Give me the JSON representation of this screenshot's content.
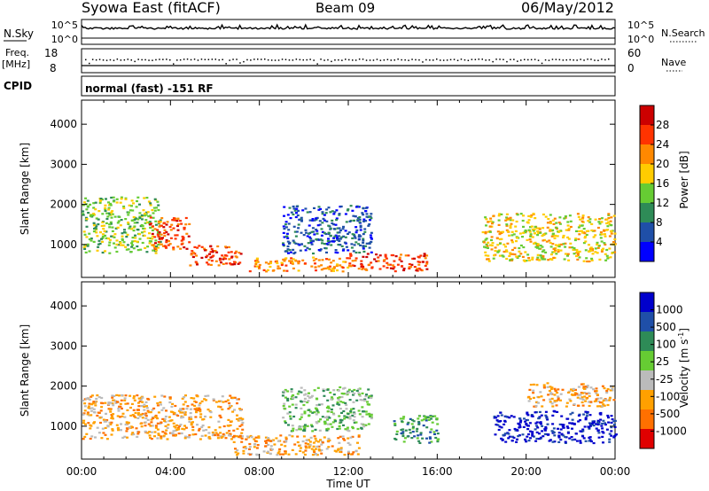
{
  "header": {
    "station": "Syowa East (fitACF)",
    "beam": "Beam 09",
    "date": "06/May/2012"
  },
  "noise_panel": {
    "left_label": "N.Sky",
    "right_label": "N.Search",
    "ticks": [
      "10^5",
      "10^0"
    ]
  },
  "freq_panel": {
    "left_label_1": "Freq.",
    "left_label_2": "[MHz]",
    "right_label": "Nave",
    "left_ticks": [
      "18",
      "8"
    ],
    "right_ticks": [
      "60",
      "0"
    ]
  },
  "cpid": {
    "label": "CPID",
    "mode": "normal (fast) -151 RF"
  },
  "x_axis": {
    "label": "Time UT",
    "ticks": [
      "00:00",
      "04:00",
      "08:00",
      "12:00",
      "16:00",
      "20:00",
      "00:00"
    ]
  },
  "colors": {
    "power": [
      "#0000ff",
      "#1f4fa8",
      "#2e8b57",
      "#66cc33",
      "#ffcc00",
      "#ff8800",
      "#ff3300",
      "#cc0000"
    ],
    "velocity": [
      "#e00000",
      "#ff7000",
      "#ffa000",
      "#bbbbbb",
      "#66cc33",
      "#2e8b57",
      "#1f4fa8",
      "#0000cc"
    ]
  },
  "chart_data": [
    {
      "type": "heatmap",
      "panel": "power",
      "ylabel": "Slant Range [km]",
      "yticks": [
        "1000",
        "2000",
        "3000",
        "4000"
      ],
      "ylim": [
        180,
        4600
      ],
      "xlim": [
        0,
        24
      ],
      "colorbar_label": "Power [dB]",
      "colorbar_ticks": [
        "4",
        "8",
        "12",
        "16",
        "20",
        "24",
        "28"
      ],
      "colorbar_range": [
        0,
        32
      ],
      "regions": [
        {
          "t": [
            0.0,
            3.5
          ],
          "range": [
            800,
            2200
          ],
          "value": 12
        },
        {
          "t": [
            3.0,
            4.8
          ],
          "range": [
            900,
            1700
          ],
          "value": 26
        },
        {
          "t": [
            4.8,
            7.2
          ],
          "range": [
            500,
            1000
          ],
          "value": 24
        },
        {
          "t": [
            7.5,
            12.0
          ],
          "range": [
            350,
            700
          ],
          "value": 20
        },
        {
          "t": [
            12.0,
            15.5
          ],
          "range": [
            350,
            800
          ],
          "value": 24
        },
        {
          "t": [
            9.0,
            13.0
          ],
          "range": [
            800,
            2000
          ],
          "value": 6
        },
        {
          "t": [
            18.0,
            24.0
          ],
          "range": [
            600,
            1800
          ],
          "value": 18
        }
      ]
    },
    {
      "type": "heatmap",
      "panel": "velocity",
      "ylabel": "Slant Range [km]",
      "yticks": [
        "1000",
        "2000",
        "3000",
        "4000"
      ],
      "ylim": [
        180,
        4600
      ],
      "xlim": [
        0,
        24
      ],
      "colorbar_label": "Velocity [m s^-1]",
      "colorbar_ticks": [
        "-1000",
        "-500",
        "-100",
        "-25",
        "25",
        "100",
        "500",
        "1000"
      ],
      "regions": [
        {
          "t": [
            0.0,
            7.2
          ],
          "range": [
            700,
            1800
          ],
          "value": -250
        },
        {
          "t": [
            6.8,
            12.5
          ],
          "range": [
            300,
            800
          ],
          "value": -150
        },
        {
          "t": [
            9.0,
            13.0
          ],
          "range": [
            900,
            2000
          ],
          "value": 0
        },
        {
          "t": [
            14.0,
            16.0
          ],
          "range": [
            600,
            1300
          ],
          "value": 60
        },
        {
          "t": [
            18.5,
            24.0
          ],
          "range": [
            600,
            1400
          ],
          "value": 800
        },
        {
          "t": [
            20.0,
            24.0
          ],
          "range": [
            1500,
            2100
          ],
          "value": -300
        }
      ]
    }
  ]
}
